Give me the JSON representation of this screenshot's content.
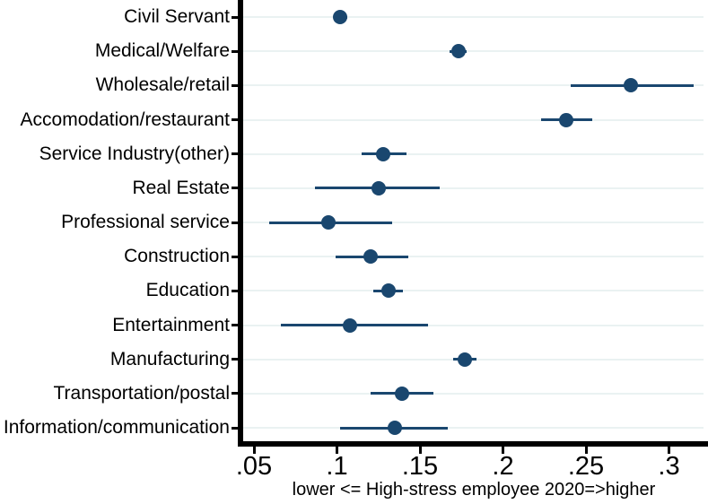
{
  "chart_data": {
    "type": "scatter",
    "subtype": "horizontal-dot-plot-with-confidence-intervals",
    "title": "",
    "xlabel": "lower <= High-stress employee 2020=>higher",
    "ylabel": "",
    "xlim": [
      0.044,
      0.322
    ],
    "grid": "horizontal-row-gridlines",
    "legend": "none",
    "xticks": {
      "values": [
        0.05,
        0.1,
        0.15,
        0.2,
        0.25,
        0.3
      ],
      "labels": [
        ".05",
        ".1",
        ".15",
        ".2",
        ".25",
        ".3"
      ]
    },
    "categories": [
      "Civil Servant",
      "Medical/Welfare",
      "Wholesale/retail",
      "Accomodation/restaurant",
      "Service Industry(other)",
      "Real Estate",
      "Professional service",
      "Construction",
      "Education",
      "Entertainment",
      "Manufacturing",
      "Transportation/postal",
      "Information/communication"
    ],
    "series": [
      {
        "name": "point_estimate",
        "values": [
          0.102,
          0.173,
          0.277,
          0.238,
          0.128,
          0.125,
          0.095,
          0.12,
          0.131,
          0.108,
          0.177,
          0.139,
          0.135
        ],
        "ci_low": [
          0.098,
          0.168,
          0.241,
          0.223,
          0.115,
          0.087,
          0.059,
          0.099,
          0.122,
          0.066,
          0.17,
          0.12,
          0.102
        ],
        "ci_high": [
          0.106,
          0.178,
          0.315,
          0.254,
          0.142,
          0.162,
          0.133,
          0.143,
          0.14,
          0.155,
          0.184,
          0.158,
          0.167
        ]
      }
    ]
  },
  "colors": {
    "marker": "#1a476f",
    "ci_line": "#1a476f",
    "grid": "#eaf2f2",
    "axis": "#000000",
    "background": "#ffffff"
  }
}
